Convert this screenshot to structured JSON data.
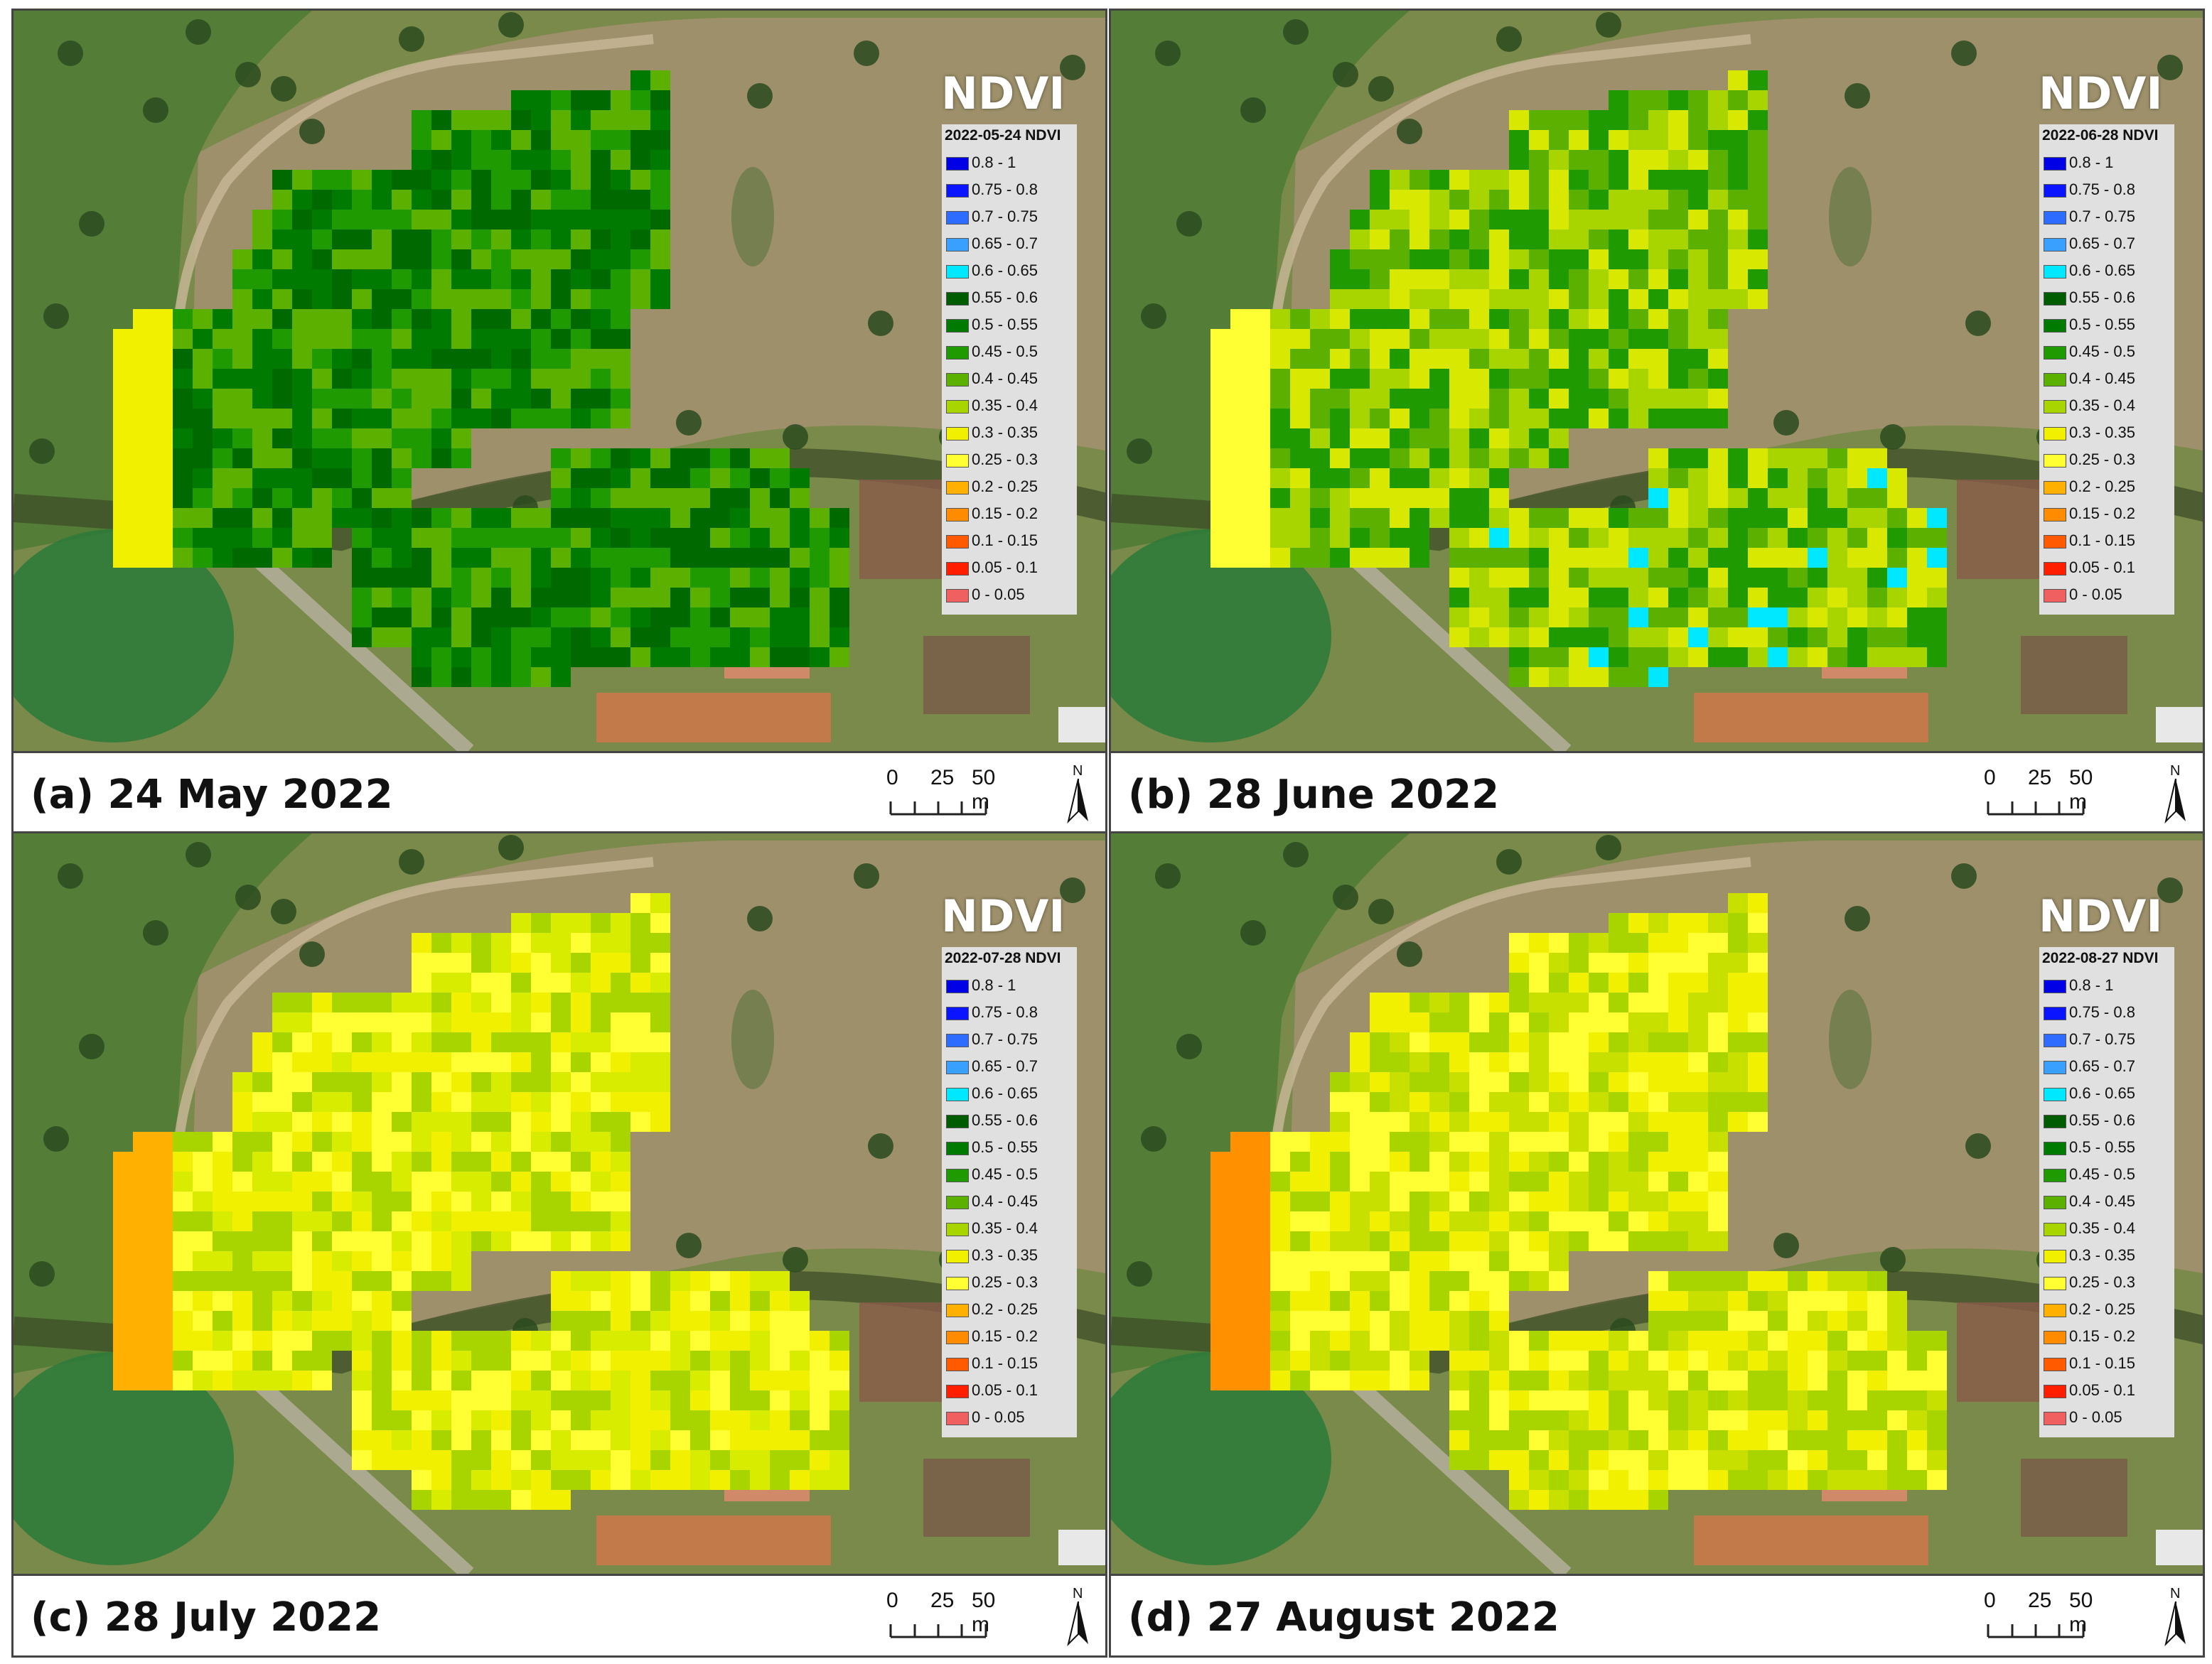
{
  "title": "NDVI",
  "north_label": "N",
  "scale": {
    "labels": [
      "0",
      "25",
      "50 m"
    ]
  },
  "legend_items": [
    {
      "label": "0.8 - 1",
      "color": "#0000e6"
    },
    {
      "label": "0.75 - 0.8",
      "color": "#0a14ff"
    },
    {
      "label": "0.7 - 0.75",
      "color": "#2e6bff"
    },
    {
      "label": "0.65 - 0.7",
      "color": "#3aa0ff"
    },
    {
      "label": "0.6 - 0.65",
      "color": "#00e8ff"
    },
    {
      "label": "0.55 - 0.6",
      "color": "#005c00"
    },
    {
      "label": "0.5 - 0.55",
      "color": "#007a00"
    },
    {
      "label": "0.45 - 0.5",
      "color": "#1f9a00"
    },
    {
      "label": "0.4 - 0.45",
      "color": "#5cb000"
    },
    {
      "label": "0.35 - 0.4",
      "color": "#a8d400"
    },
    {
      "label": "0.3 - 0.35",
      "color": "#f0f000"
    },
    {
      "label": "0.25 - 0.3",
      "color": "#ffff33"
    },
    {
      "label": "0.2 - 0.25",
      "color": "#ffb000"
    },
    {
      "label": "0.15 - 0.2",
      "color": "#ff8c00"
    },
    {
      "label": "0.1 - 0.15",
      "color": "#ff5a00"
    },
    {
      "label": "0.05 - 0.1",
      "color": "#ff1e00"
    },
    {
      "label": "0 - 0.05",
      "color": "#f06060"
    }
  ],
  "panels": [
    {
      "caption": "(a) 24 May 2022",
      "legend_title": "2022-05-24 NDVI",
      "palette": [
        "#1f9a00",
        "#007a00",
        "#5cb000",
        "#006a00"
      ],
      "edge": "#f0f000",
      "accent": null
    },
    {
      "caption": "(b) 28 June 2022",
      "legend_title": "2022-06-28 NDVI",
      "palette": [
        "#a8d400",
        "#5cb000",
        "#d8e800",
        "#1f9a00"
      ],
      "edge": "#ffff33",
      "accent": "#00e8ff"
    },
    {
      "caption": "(c) 28 July 2022",
      "legend_title": "2022-07-28 NDVI",
      "palette": [
        "#f0f000",
        "#ffff33",
        "#a8d400",
        "#d8ec00"
      ],
      "edge": "#ffb000",
      "accent": null
    },
    {
      "caption": "(d) 27 August 2022",
      "legend_title": "2022-08-27 NDVI",
      "palette": [
        "#f0f000",
        "#a8d400",
        "#ffff33",
        "#c8e000"
      ],
      "edge": "#ff9000",
      "accent": null
    }
  ]
}
